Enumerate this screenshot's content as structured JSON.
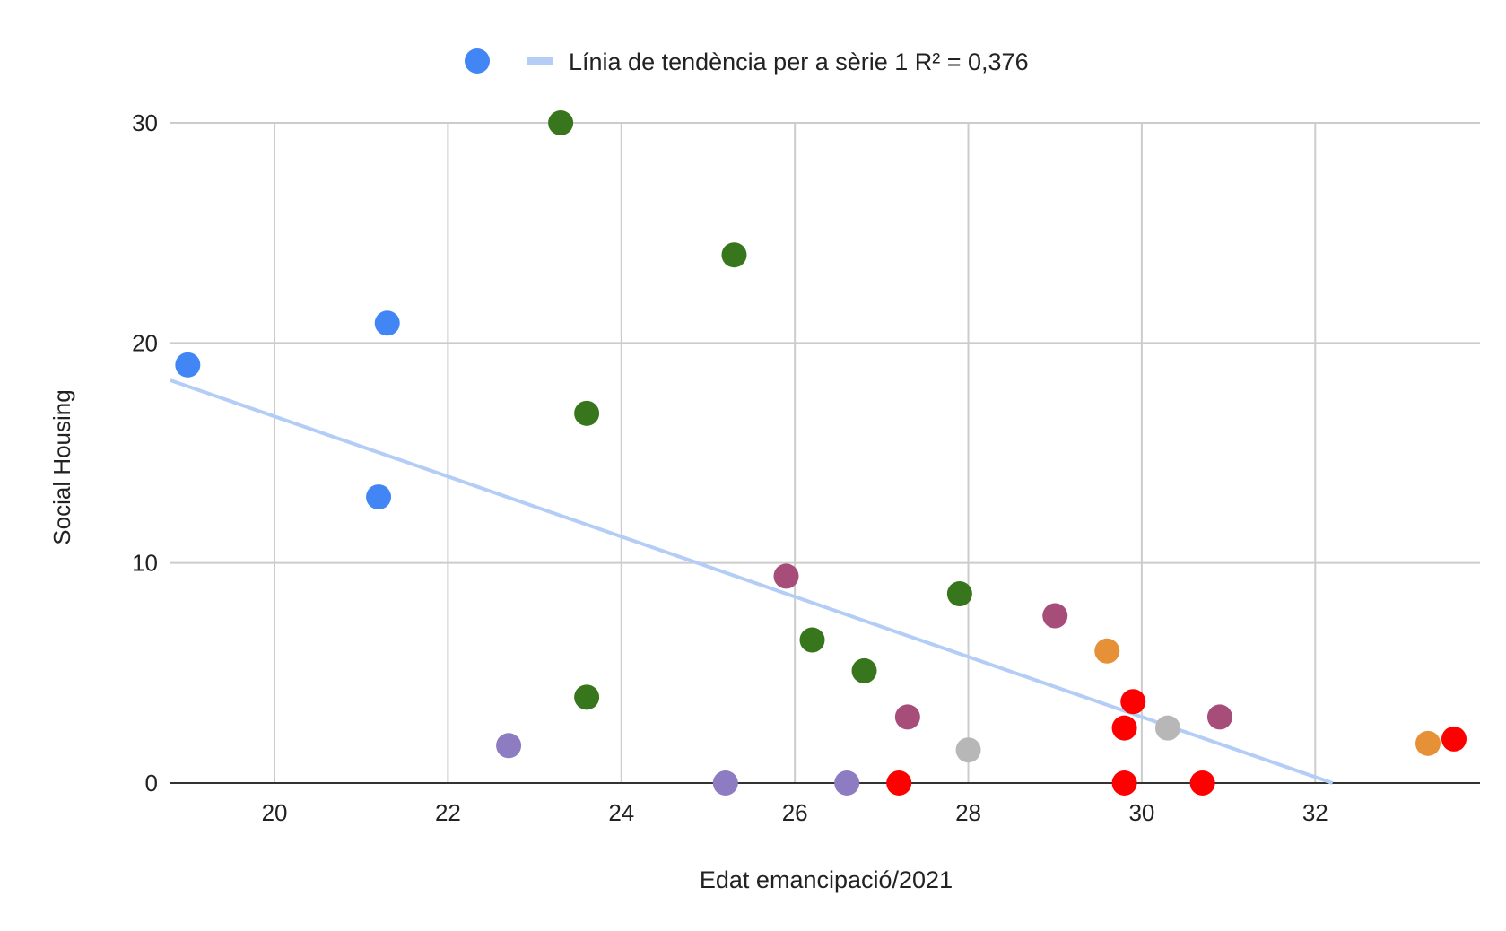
{
  "chart_data": {
    "type": "scatter",
    "xlabel": "Edat emancipació/2021",
    "ylabel": "Social Housing",
    "xlim": [
      18.8,
      33.9
    ],
    "ylim": [
      0,
      30
    ],
    "x_ticks": [
      20,
      22,
      24,
      26,
      28,
      30,
      32
    ],
    "y_ticks": [
      0,
      10,
      20,
      30
    ],
    "grid": true,
    "legend": {
      "position": "top-center",
      "entries": [
        {
          "label": "",
          "marker": "circle",
          "color": "#4285f4"
        },
        {
          "label": "Línia de tendència per a sèrie 1 R² = 0,376",
          "marker": "line",
          "color": "#b4cdf7"
        }
      ]
    },
    "trendline": {
      "label": "Línia de tendència per a sèrie 1 R² = 0,376",
      "color": "#b4cdf7",
      "x": [
        18.8,
        32.2
      ],
      "y": [
        18.3,
        0
      ]
    },
    "points": [
      {
        "x": 19.0,
        "y": 19.0,
        "color": "#4285f4"
      },
      {
        "x": 21.3,
        "y": 20.9,
        "color": "#4285f4"
      },
      {
        "x": 21.2,
        "y": 13.0,
        "color": "#4285f4"
      },
      {
        "x": 23.3,
        "y": 30.0,
        "color": "#38761d"
      },
      {
        "x": 25.3,
        "y": 24.0,
        "color": "#38761d"
      },
      {
        "x": 23.6,
        "y": 16.8,
        "color": "#38761d"
      },
      {
        "x": 23.6,
        "y": 3.9,
        "color": "#38761d"
      },
      {
        "x": 26.2,
        "y": 6.5,
        "color": "#38761d"
      },
      {
        "x": 26.8,
        "y": 5.1,
        "color": "#38761d"
      },
      {
        "x": 27.9,
        "y": 8.6,
        "color": "#38761d"
      },
      {
        "x": 25.9,
        "y": 9.4,
        "color": "#a64d79"
      },
      {
        "x": 27.3,
        "y": 3.0,
        "color": "#a64d79"
      },
      {
        "x": 29.0,
        "y": 7.6,
        "color": "#a64d79"
      },
      {
        "x": 30.9,
        "y": 3.0,
        "color": "#a64d79"
      },
      {
        "x": 22.7,
        "y": 1.7,
        "color": "#8e7cc3"
      },
      {
        "x": 25.2,
        "y": 0.0,
        "color": "#8e7cc3"
      },
      {
        "x": 26.6,
        "y": 0.0,
        "color": "#8e7cc3"
      },
      {
        "x": 29.6,
        "y": 6.0,
        "color": "#e69138"
      },
      {
        "x": 33.3,
        "y": 1.8,
        "color": "#e69138"
      },
      {
        "x": 28.0,
        "y": 1.5,
        "color": "#b7b7b7"
      },
      {
        "x": 30.3,
        "y": 2.5,
        "color": "#b7b7b7"
      },
      {
        "x": 27.2,
        "y": 0.0,
        "color": "#ff0000"
      },
      {
        "x": 29.9,
        "y": 3.7,
        "color": "#ff0000"
      },
      {
        "x": 29.8,
        "y": 2.5,
        "color": "#ff0000"
      },
      {
        "x": 29.8,
        "y": 0.0,
        "color": "#ff0000"
      },
      {
        "x": 30.7,
        "y": 0.0,
        "color": "#ff0000"
      },
      {
        "x": 33.6,
        "y": 2.0,
        "color": "#ff0000"
      }
    ]
  }
}
